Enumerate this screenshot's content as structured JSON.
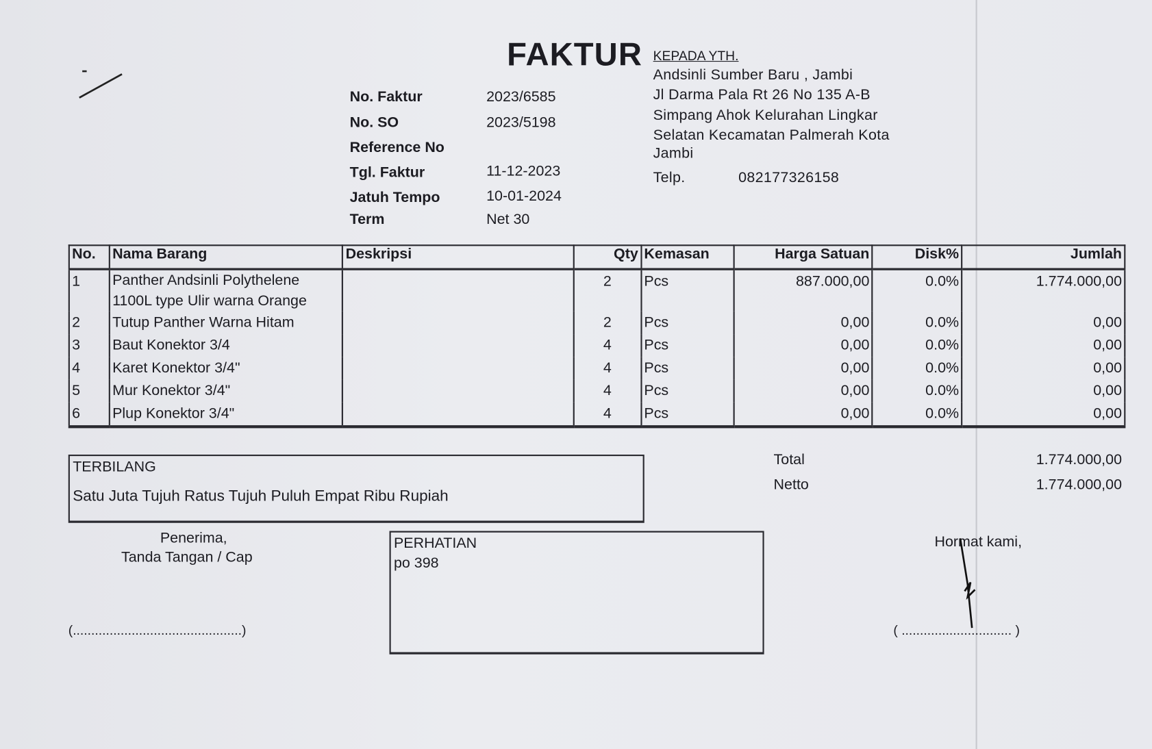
{
  "header": {
    "title": "FAKTUR",
    "recipient_label": "KEPADA YTH.",
    "recipient_lines": [
      "Andsinli Sumber Baru , Jambi",
      "Jl Darma Pala Rt 26 No 135 A-B",
      "Simpang Ahok Kelurahan Lingkar",
      "Selatan Kecamatan Palmerah Kota",
      "Jambi"
    ],
    "phone_label": "Telp.",
    "phone": "082177326158"
  },
  "info": [
    {
      "label": "No. Faktur",
      "value": "2023/6585"
    },
    {
      "label": "No. SO",
      "value": "2023/5198"
    },
    {
      "label": "Reference No",
      "value": ""
    },
    {
      "label": "Tgl. Faktur",
      "value": "11-12-2023"
    },
    {
      "label": "Jatuh Tempo",
      "value": "10-01-2024"
    },
    {
      "label": "Term",
      "value": "Net 30"
    }
  ],
  "table": {
    "headers": [
      "No.",
      "Nama Barang",
      "Deskripsi",
      "Qty",
      "Kemasan",
      "Harga Satuan",
      "Disk%",
      "Jumlah"
    ],
    "rows": [
      {
        "no": "1",
        "name": "Panther Andsinli Polythelene 1100L  type Ulir warna Orange",
        "desc": "",
        "qty": "2",
        "unit": "Pcs",
        "price": "887.000,00",
        "disc": "0.0%",
        "total": "1.774.000,00"
      },
      {
        "no": "2",
        "name": "Tutup Panther Warna Hitam",
        "desc": "",
        "qty": "2",
        "unit": "Pcs",
        "price": "0,00",
        "disc": "0.0%",
        "total": "0,00"
      },
      {
        "no": "3",
        "name": "Baut Konektor 3/4",
        "desc": "",
        "qty": "4",
        "unit": "Pcs",
        "price": "0,00",
        "disc": "0.0%",
        "total": "0,00"
      },
      {
        "no": "4",
        "name": "Karet Konektor 3/4\"",
        "desc": "",
        "qty": "4",
        "unit": "Pcs",
        "price": "0,00",
        "disc": "0.0%",
        "total": "0,00"
      },
      {
        "no": "5",
        "name": "Mur Konektor 3/4\"",
        "desc": "",
        "qty": "4",
        "unit": "Pcs",
        "price": "0,00",
        "disc": "0.0%",
        "total": "0,00"
      },
      {
        "no": "6",
        "name": "Plup Konektor 3/4\"",
        "desc": "",
        "qty": "4",
        "unit": "Pcs",
        "price": "0,00",
        "disc": "0.0%",
        "total": "0,00"
      }
    ]
  },
  "terbilang": {
    "label": "TERBILANG",
    "text": "Satu Juta Tujuh Ratus Tujuh Puluh Empat Ribu Rupiah"
  },
  "totals": {
    "total_label": "Total",
    "total": "1.774.000,00",
    "netto_label": "Netto",
    "netto": "1.774.000,00"
  },
  "footer": {
    "receiver_line1": "Penerima,",
    "receiver_line2": "Tanda Tangan / Cap",
    "receiver_sign": "(..............................................)",
    "note_label": "PERHATIAN",
    "note_text": "po 398",
    "sender_label": "Hormat kami,",
    "sender_sign": "( .............................. )"
  }
}
